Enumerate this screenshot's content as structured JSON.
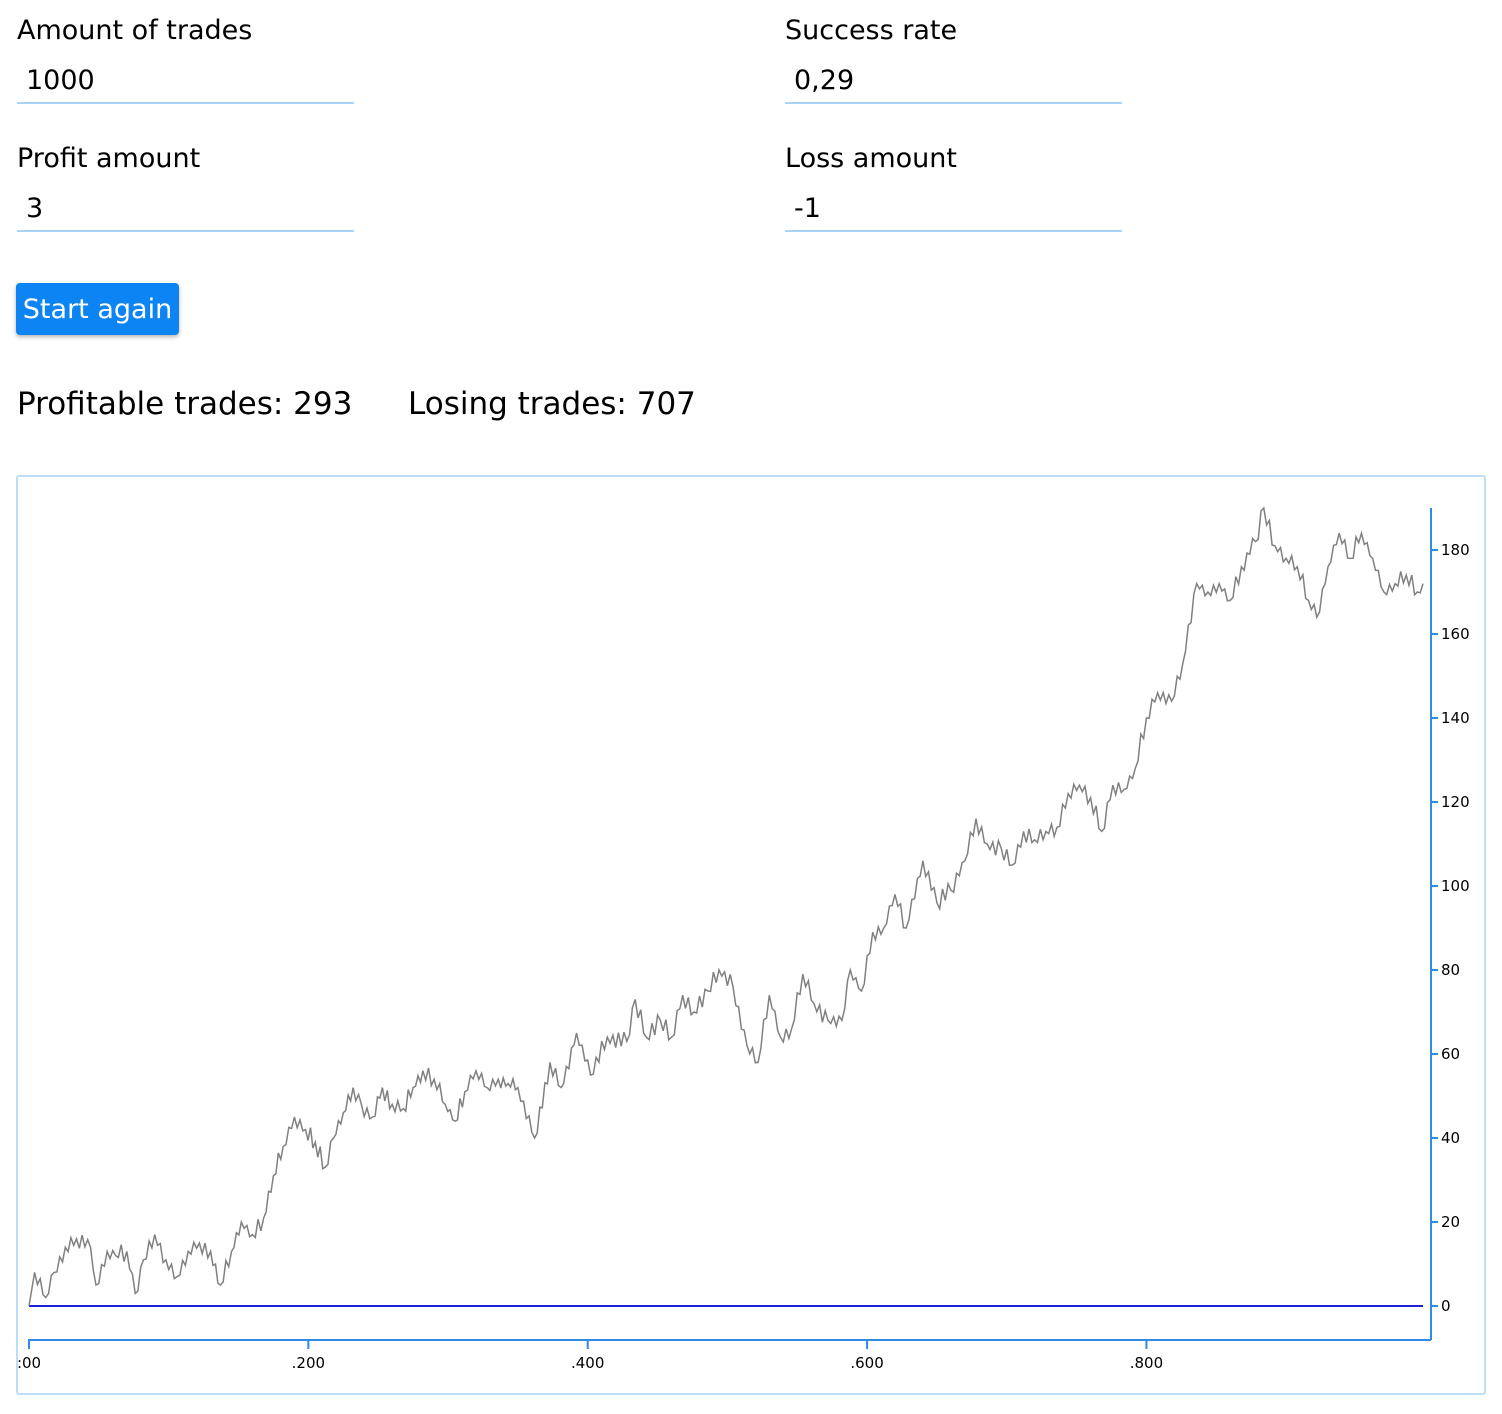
{
  "form": {
    "trades_label": "Amount of trades",
    "trades_value": "1000",
    "success_label": "Success rate",
    "success_value": "0,29",
    "profit_label": "Profit amount",
    "profit_value": "3",
    "loss_label": "Loss amount",
    "loss_value": "-1",
    "button_label": "Start again"
  },
  "stats": {
    "profitable": "Profitable trades: 293",
    "losing": "Losing trades: 707"
  },
  "colors": {
    "accent": "#0d84f4",
    "axis": "#2f8be6",
    "series": "#808080",
    "baseline": "#1f1fd6",
    "input_border": "#a9d3f3"
  },
  "chart_data": {
    "type": "line",
    "title": "",
    "xlabel": "",
    "ylabel": "",
    "xlim": [
      0,
      1000
    ],
    "ylim": [
      -8,
      190
    ],
    "y_axis_side": "right",
    "grid": false,
    "x_ticks": [
      0,
      200,
      400,
      600,
      800
    ],
    "x_tick_labels": [
      ":00",
      ".200",
      ".400",
      ".600",
      ".800"
    ],
    "y_ticks": [
      0,
      20,
      40,
      60,
      80,
      100,
      120,
      140,
      160,
      180
    ],
    "y_tick_labels": [
      "0",
      "20",
      "40",
      "60",
      "80",
      "100",
      "120",
      "140",
      "160",
      "180"
    ],
    "series": [
      {
        "values_xy": [
          [
            0,
            0
          ],
          [
            4,
            8
          ],
          [
            12,
            2
          ],
          [
            18,
            8
          ],
          [
            26,
            14
          ],
          [
            34,
            16
          ],
          [
            44,
            14
          ],
          [
            48,
            5
          ],
          [
            56,
            13
          ],
          [
            62,
            12
          ],
          [
            70,
            13
          ],
          [
            76,
            3
          ],
          [
            82,
            11
          ],
          [
            90,
            17
          ],
          [
            98,
            11
          ],
          [
            106,
            7
          ],
          [
            114,
            13
          ],
          [
            122,
            15
          ],
          [
            130,
            13
          ],
          [
            137,
            5
          ],
          [
            145,
            13
          ],
          [
            152,
            20
          ],
          [
            160,
            17
          ],
          [
            168,
            21
          ],
          [
            175,
            31
          ],
          [
            182,
            38
          ],
          [
            190,
            45
          ],
          [
            198,
            42
          ],
          [
            205,
            39
          ],
          [
            212,
            33
          ],
          [
            218,
            40
          ],
          [
            225,
            46
          ],
          [
            232,
            52
          ],
          [
            238,
            48
          ],
          [
            246,
            45
          ],
          [
            253,
            52
          ],
          [
            260,
            48
          ],
          [
            268,
            47
          ],
          [
            275,
            52
          ],
          [
            282,
            56
          ],
          [
            290,
            54
          ],
          [
            298,
            48
          ],
          [
            305,
            44
          ],
          [
            312,
            51
          ],
          [
            320,
            56
          ],
          [
            328,
            52
          ],
          [
            336,
            54
          ],
          [
            343,
            53
          ],
          [
            350,
            52
          ],
          [
            362,
            40
          ],
          [
            373,
            58
          ],
          [
            381,
            52
          ],
          [
            392,
            65
          ],
          [
            402,
            55
          ],
          [
            414,
            64
          ],
          [
            428,
            63
          ],
          [
            434,
            73
          ],
          [
            442,
            64
          ],
          [
            452,
            68
          ],
          [
            460,
            64
          ],
          [
            468,
            74
          ],
          [
            476,
            70
          ],
          [
            486,
            75
          ],
          [
            494,
            80
          ],
          [
            504,
            76
          ],
          [
            514,
            62
          ],
          [
            522,
            58
          ],
          [
            530,
            74
          ],
          [
            538,
            64
          ],
          [
            546,
            66
          ],
          [
            554,
            79
          ],
          [
            562,
            72
          ],
          [
            572,
            68
          ],
          [
            582,
            68
          ],
          [
            588,
            80
          ],
          [
            596,
            75
          ],
          [
            604,
            89
          ],
          [
            612,
            90
          ],
          [
            620,
            98
          ],
          [
            628,
            90
          ],
          [
            640,
            106
          ],
          [
            650,
            96
          ],
          [
            660,
            99
          ],
          [
            670,
            106
          ],
          [
            678,
            116
          ],
          [
            686,
            110
          ],
          [
            696,
            109
          ],
          [
            704,
            105
          ],
          [
            712,
            113
          ],
          [
            720,
            111
          ],
          [
            728,
            113
          ],
          [
            736,
            114
          ],
          [
            744,
            122
          ],
          [
            752,
            124
          ],
          [
            760,
            121
          ],
          [
            768,
            113
          ],
          [
            776,
            124
          ],
          [
            784,
            123
          ],
          [
            792,
            128
          ],
          [
            800,
            140
          ],
          [
            808,
            146
          ],
          [
            818,
            144
          ],
          [
            826,
            153
          ],
          [
            836,
            172
          ],
          [
            844,
            170
          ],
          [
            852,
            172
          ],
          [
            860,
            168
          ],
          [
            868,
            176
          ],
          [
            878,
            182
          ],
          [
            884,
            190
          ],
          [
            892,
            181
          ],
          [
            900,
            178
          ],
          [
            908,
            176
          ],
          [
            916,
            168
          ],
          [
            922,
            164
          ],
          [
            930,
            176
          ],
          [
            938,
            184
          ],
          [
            946,
            178
          ],
          [
            954,
            184
          ],
          [
            962,
            178
          ],
          [
            970,
            170
          ],
          [
            978,
            172
          ],
          [
            986,
            174
          ],
          [
            994,
            170
          ],
          [
            998,
            172
          ]
        ]
      },
      {
        "values_xy": [
          [
            0,
            0
          ],
          [
            998,
            0
          ]
        ]
      }
    ]
  }
}
